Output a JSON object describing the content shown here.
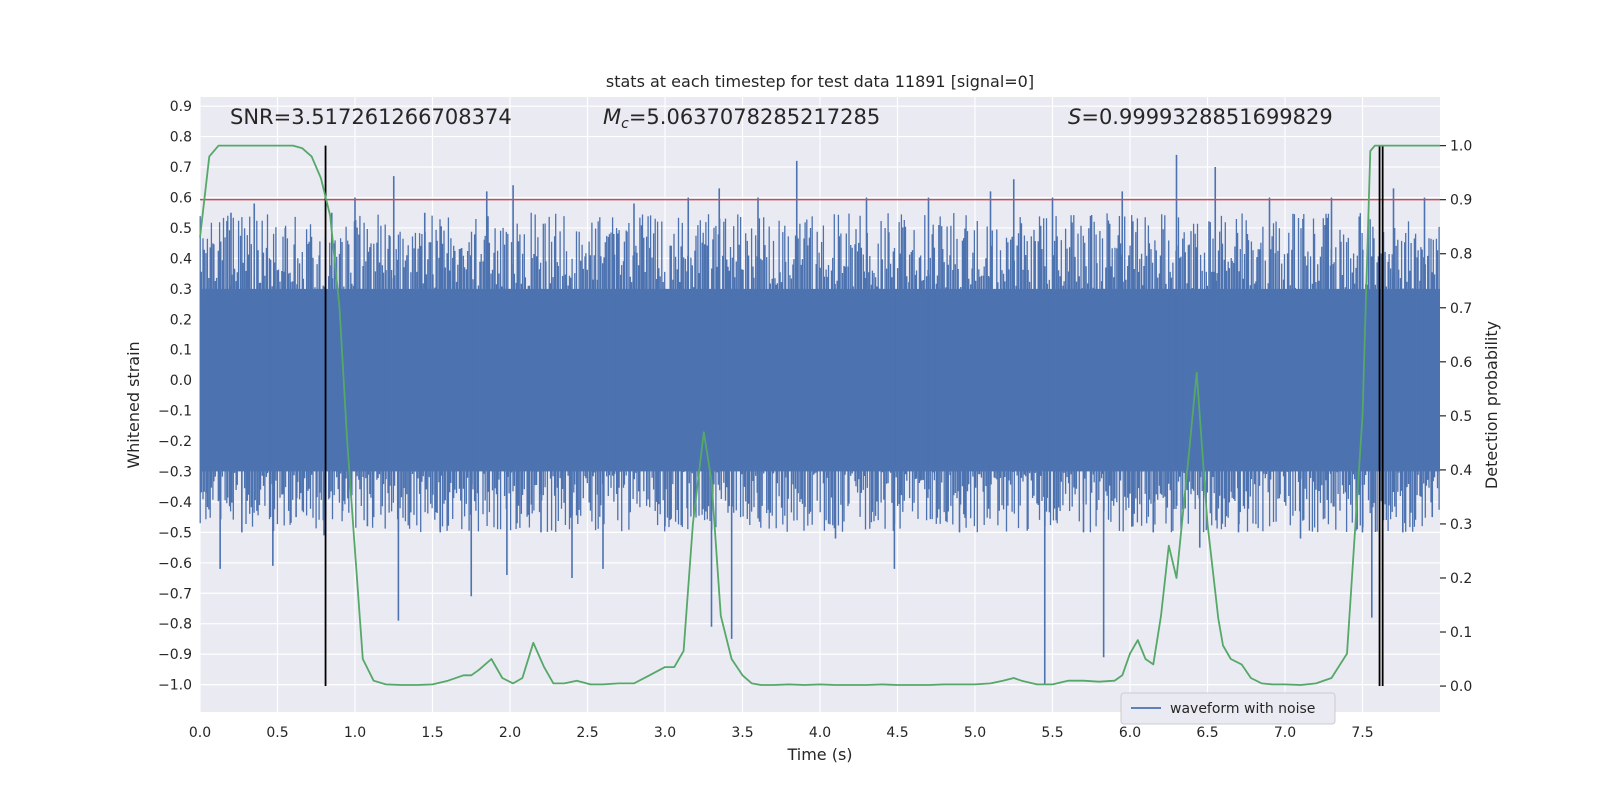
{
  "chart_data": {
    "type": "line",
    "title": "stats at each timestep for test data 11891 [signal=0]",
    "xlabel": "Time (s)",
    "ylabel": "Whitened strain",
    "ylabel_right": "Detection probability",
    "xlim": [
      0.0,
      8.0
    ],
    "ylim": [
      -1.09,
      0.93
    ],
    "ylim_right": [
      -0.048,
      1.09
    ],
    "x_ticks": [
      "0.0",
      "0.5",
      "1.0",
      "1.5",
      "2.0",
      "2.5",
      "3.0",
      "3.5",
      "4.0",
      "4.5",
      "5.0",
      "5.5",
      "6.0",
      "6.5",
      "7.0",
      "7.5"
    ],
    "y_ticks": [
      "0.9",
      "0.8",
      "0.7",
      "0.6",
      "0.5",
      "0.4",
      "0.3",
      "0.2",
      "0.1",
      "0.0",
      "−0.1",
      "−0.2",
      "−0.3",
      "−0.4",
      "−0.5",
      "−0.6",
      "−0.7",
      "−0.8",
      "−0.9",
      "−1.0"
    ],
    "y_tick_values": [
      0.9,
      0.8,
      0.7,
      0.6,
      0.5,
      0.4,
      0.3,
      0.2,
      0.1,
      0.0,
      -0.1,
      -0.2,
      -0.3,
      -0.4,
      -0.5,
      -0.6,
      -0.7,
      -0.8,
      -0.9,
      -1.0
    ],
    "y2_ticks": [
      "1.0",
      "0.9",
      "0.8",
      "0.7",
      "0.6",
      "0.5",
      "0.4",
      "0.3",
      "0.2",
      "0.1",
      "0.0"
    ],
    "y2_tick_values": [
      1.0,
      0.9,
      0.8,
      0.7,
      0.6,
      0.5,
      0.4,
      0.3,
      0.2,
      0.1,
      0.0
    ],
    "annotations": {
      "snr": "SNR=3.517261266708374",
      "mc_symbol": "M",
      "mc_sub": "c",
      "mc_value": "=5.0637078285217285",
      "s_symbol": "S",
      "s_value": "=0.9999328851699829"
    },
    "threshold": 0.9,
    "vlines_x": [
      0.81,
      7.61,
      7.63
    ],
    "waveform": {
      "name": "waveform with noise",
      "band": [
        -0.3,
        0.3
      ],
      "spikes": [
        {
          "x": 0.04,
          "y": -0.37
        },
        {
          "x": 0.13,
          "y": -0.62
        },
        {
          "x": 0.2,
          "y": 0.55
        },
        {
          "x": 0.27,
          "y": -0.5
        },
        {
          "x": 0.35,
          "y": 0.58
        },
        {
          "x": 0.47,
          "y": -0.61
        },
        {
          "x": 0.55,
          "y": 0.5
        },
        {
          "x": 0.62,
          "y": -0.45
        },
        {
          "x": 0.8,
          "y": -0.51
        },
        {
          "x": 0.85,
          "y": 0.55
        },
        {
          "x": 0.92,
          "y": -0.43
        },
        {
          "x": 1.0,
          "y": 0.6
        },
        {
          "x": 1.08,
          "y": -0.48
        },
        {
          "x": 1.25,
          "y": 0.67
        },
        {
          "x": 1.28,
          "y": -0.79
        },
        {
          "x": 1.45,
          "y": 0.55
        },
        {
          "x": 1.55,
          "y": -0.5
        },
        {
          "x": 1.75,
          "y": -0.71
        },
        {
          "x": 1.85,
          "y": 0.62
        },
        {
          "x": 1.98,
          "y": -0.64
        },
        {
          "x": 2.02,
          "y": 0.64
        },
        {
          "x": 2.2,
          "y": -0.5
        },
        {
          "x": 2.4,
          "y": -0.65
        },
        {
          "x": 2.6,
          "y": -0.62
        },
        {
          "x": 2.8,
          "y": 0.58
        },
        {
          "x": 3.0,
          "y": -0.48
        },
        {
          "x": 3.15,
          "y": 0.6
        },
        {
          "x": 3.3,
          "y": -0.81
        },
        {
          "x": 3.35,
          "y": 0.63
        },
        {
          "x": 3.43,
          "y": -0.85
        },
        {
          "x": 3.6,
          "y": 0.6
        },
        {
          "x": 3.85,
          "y": 0.72
        },
        {
          "x": 4.1,
          "y": -0.52
        },
        {
          "x": 4.3,
          "y": 0.6
        },
        {
          "x": 4.48,
          "y": -0.62
        },
        {
          "x": 4.7,
          "y": 0.6
        },
        {
          "x": 4.9,
          "y": -0.5
        },
        {
          "x": 5.1,
          "y": 0.62
        },
        {
          "x": 5.25,
          "y": 0.66
        },
        {
          "x": 5.45,
          "y": -1.0
        },
        {
          "x": 5.5,
          "y": 0.6
        },
        {
          "x": 5.7,
          "y": -0.5
        },
        {
          "x": 5.83,
          "y": -0.91
        },
        {
          "x": 5.95,
          "y": 0.62
        },
        {
          "x": 6.15,
          "y": -0.5
        },
        {
          "x": 6.3,
          "y": 0.74
        },
        {
          "x": 6.45,
          "y": -0.55
        },
        {
          "x": 6.55,
          "y": 0.7
        },
        {
          "x": 6.7,
          "y": -0.5
        },
        {
          "x": 6.9,
          "y": 0.6
        },
        {
          "x": 7.1,
          "y": -0.52
        },
        {
          "x": 7.3,
          "y": 0.6
        },
        {
          "x": 7.5,
          "y": -0.5
        },
        {
          "x": 7.56,
          "y": -0.78
        },
        {
          "x": 7.63,
          "y": -0.66
        },
        {
          "x": 7.7,
          "y": 0.63
        },
        {
          "x": 7.76,
          "y": -0.5
        },
        {
          "x": 7.9,
          "y": 0.6
        },
        {
          "x": 7.95,
          "y": -0.45
        }
      ]
    },
    "detection_probability": {
      "x": [
        0.0,
        0.06,
        0.12,
        0.2,
        0.3,
        0.4,
        0.5,
        0.6,
        0.66,
        0.72,
        0.78,
        0.84,
        0.9,
        0.95,
        1.0,
        1.05,
        1.12,
        1.2,
        1.3,
        1.4,
        1.5,
        1.6,
        1.7,
        1.75,
        1.8,
        1.88,
        1.95,
        2.02,
        2.08,
        2.15,
        2.22,
        2.28,
        2.35,
        2.43,
        2.52,
        2.6,
        2.7,
        2.8,
        2.9,
        3.0,
        3.06,
        3.12,
        3.18,
        3.25,
        3.3,
        3.36,
        3.43,
        3.5,
        3.56,
        3.62,
        3.7,
        3.8,
        3.9,
        4.0,
        4.1,
        4.2,
        4.3,
        4.4,
        4.5,
        4.6,
        4.7,
        4.8,
        4.9,
        5.0,
        5.1,
        5.18,
        5.25,
        5.3,
        5.4,
        5.5,
        5.6,
        5.7,
        5.8,
        5.9,
        5.95,
        6.0,
        6.05,
        6.1,
        6.15,
        6.2,
        6.25,
        6.3,
        6.38,
        6.43,
        6.5,
        6.57,
        6.6,
        6.65,
        6.72,
        6.78,
        6.85,
        6.92,
        7.0,
        7.1,
        7.2,
        7.3,
        7.4,
        7.5,
        7.55,
        7.58,
        7.61,
        7.64,
        7.67,
        7.72,
        7.8,
        7.92,
        8.0
      ],
      "y": [
        0.83,
        0.98,
        1.0,
        1.0,
        1.0,
        1.0,
        1.0,
        1.0,
        0.995,
        0.98,
        0.94,
        0.87,
        0.7,
        0.45,
        0.25,
        0.05,
        0.01,
        0.003,
        0.002,
        0.002,
        0.003,
        0.01,
        0.02,
        0.02,
        0.03,
        0.05,
        0.015,
        0.005,
        0.015,
        0.08,
        0.035,
        0.005,
        0.005,
        0.01,
        0.003,
        0.003,
        0.005,
        0.005,
        0.02,
        0.035,
        0.035,
        0.065,
        0.3,
        0.47,
        0.38,
        0.13,
        0.05,
        0.02,
        0.005,
        0.002,
        0.002,
        0.003,
        0.002,
        0.003,
        0.002,
        0.002,
        0.002,
        0.003,
        0.002,
        0.002,
        0.002,
        0.003,
        0.003,
        0.003,
        0.005,
        0.01,
        0.015,
        0.01,
        0.003,
        0.003,
        0.01,
        0.01,
        0.008,
        0.01,
        0.02,
        0.06,
        0.085,
        0.05,
        0.04,
        0.13,
        0.26,
        0.2,
        0.43,
        0.58,
        0.3,
        0.125,
        0.075,
        0.05,
        0.04,
        0.015,
        0.005,
        0.003,
        0.003,
        0.002,
        0.005,
        0.015,
        0.06,
        0.5,
        0.99,
        1.0,
        1.0,
        1.0,
        1.0,
        1.0,
        1.0,
        1.0,
        1.0
      ]
    },
    "legend": {
      "position": "lower-right",
      "entries": [
        "waveform with noise"
      ]
    },
    "colors": {
      "waveform": "#4c72b0",
      "probability": "#55a868",
      "threshold": "#c44e52",
      "vline": "#000000",
      "plot_bg": "#eaeaf2",
      "grid": "#ffffff"
    }
  }
}
